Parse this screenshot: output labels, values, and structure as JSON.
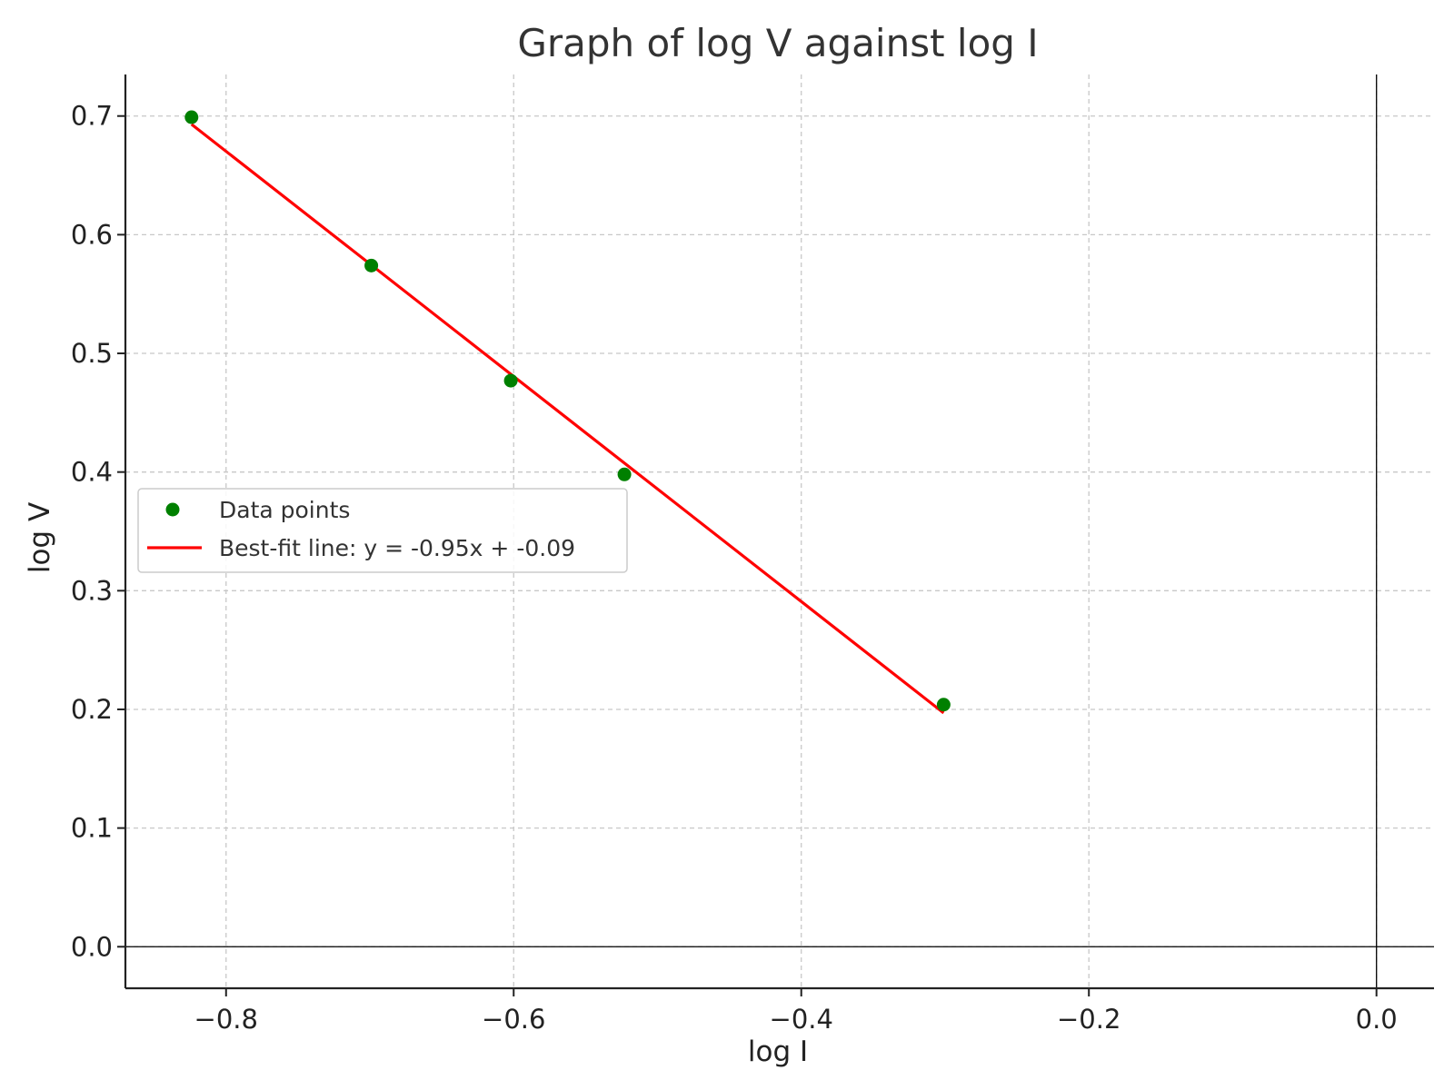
{
  "chart_data": {
    "type": "scatter",
    "title": "Graph of log V against log I",
    "xlabel": "log I",
    "ylabel": "log V",
    "xlim": [
      -0.87,
      0.04
    ],
    "ylim": [
      -0.035,
      0.735
    ],
    "xticks": [
      -0.8,
      -0.6,
      -0.4,
      -0.2,
      0.0
    ],
    "xtick_labels": [
      "−0.8",
      "−0.6",
      "−0.4",
      "−0.2",
      "0.0"
    ],
    "yticks": [
      0.0,
      0.1,
      0.2,
      0.3,
      0.4,
      0.5,
      0.6,
      0.7
    ],
    "ytick_labels": [
      "0.0",
      "0.1",
      "0.2",
      "0.3",
      "0.4",
      "0.5",
      "0.6",
      "0.7"
    ],
    "grid": true,
    "legend_position": "center-left",
    "series": [
      {
        "name": "Data points",
        "kind": "scatter",
        "color": "#008000",
        "x": [
          -0.824,
          -0.699,
          -0.602,
          -0.523,
          -0.301
        ],
        "y": [
          0.699,
          0.574,
          0.477,
          0.398,
          0.204
        ]
      },
      {
        "name": "Best-fit line: y = -0.95x + -0.09",
        "kind": "line",
        "color": "#ff0000",
        "x": [
          -0.824,
          -0.301
        ],
        "y": [
          0.693,
          0.197
        ]
      }
    ],
    "reference_lines": {
      "horizontal_at_y": 0.0,
      "vertical_at_x": 0.0,
      "color": "#000000"
    }
  }
}
